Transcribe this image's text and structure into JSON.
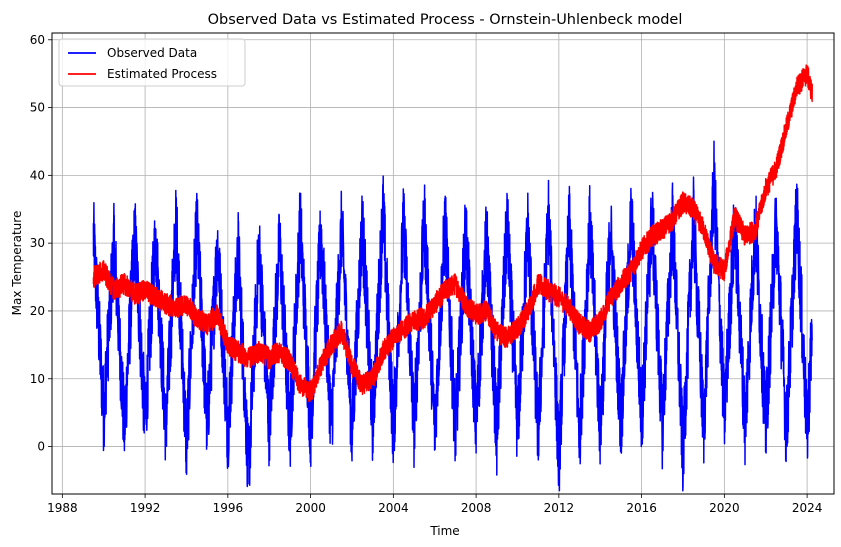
{
  "chart_data": {
    "type": "line",
    "title": "Observed Data vs Estimated Process - Ornstein-Uhlenbeck model",
    "xlabel": "Time",
    "ylabel": "Max Temperature",
    "xlim": [
      1987.5,
      2025.3
    ],
    "ylim": [
      -7,
      61
    ],
    "xticks": [
      1988,
      1992,
      1996,
      2000,
      2004,
      2008,
      2012,
      2016,
      2020,
      2024
    ],
    "xtick_labels": [
      "1988",
      "1992",
      "1996",
      "2000",
      "2004",
      "2008",
      "2012",
      "2016",
      "2020",
      "2024"
    ],
    "yticks": [
      0,
      10,
      20,
      30,
      40,
      50,
      60
    ],
    "ytick_labels": [
      "0",
      "10",
      "20",
      "30",
      "40",
      "50",
      "60"
    ],
    "grid": true,
    "legend": "upper-left",
    "series": [
      {
        "name": "Observed Data",
        "color": "#0000ff",
        "seasonal": true,
        "x": [
          1989.5,
          1990.0,
          1990.5,
          1991.0,
          1991.5,
          1992.0,
          1992.5,
          1993.0,
          1993.5,
          1994.0,
          1994.5,
          1995.0,
          1995.5,
          1996.0,
          1996.5,
          1997.0,
          1997.5,
          1998.0,
          1998.5,
          1999.0,
          1999.5,
          2000.0,
          2000.5,
          2001.0,
          2001.5,
          2002.0,
          2002.5,
          2003.0,
          2003.5,
          2004.0,
          2004.5,
          2005.0,
          2005.5,
          2006.0,
          2006.5,
          2007.0,
          2007.5,
          2008.0,
          2008.5,
          2009.0,
          2009.5,
          2010.0,
          2010.5,
          2011.0,
          2011.5,
          2012.0,
          2012.5,
          2013.0,
          2013.5,
          2014.0,
          2014.5,
          2015.0,
          2015.5,
          2016.0,
          2016.5,
          2017.0,
          2017.5,
          2018.0,
          2018.5,
          2019.0,
          2019.5,
          2020.0,
          2020.5,
          2021.0,
          2021.5,
          2022.0,
          2022.5,
          2023.0,
          2023.5,
          2024.0,
          2024.25
        ],
        "y": [
          31,
          5,
          30,
          2.5,
          31.5,
          3.5,
          31,
          2.5,
          33,
          0,
          32.5,
          3,
          30,
          2,
          29,
          -4,
          29.5,
          3,
          30,
          2,
          33,
          2.5,
          31.5,
          3,
          32.5,
          2,
          33,
          3.5,
          35,
          2,
          33,
          3,
          33.5,
          2.5,
          33,
          2,
          32,
          3,
          31,
          2,
          33,
          2.5,
          32,
          2,
          34,
          -2,
          33,
          1.5,
          33,
          2.5,
          32,
          3,
          34,
          4,
          34,
          3,
          33.5,
          -1.5,
          34,
          2.5,
          39,
          4.5,
          33,
          3,
          33,
          2.5,
          33.5,
          2,
          35,
          2,
          18
        ]
      },
      {
        "name": "Estimated Process",
        "color": "#ff0000",
        "seasonal": false,
        "x": [
          1989.5,
          1990.0,
          1990.5,
          1991.0,
          1991.5,
          1992.0,
          1992.5,
          1993.0,
          1993.5,
          1994.0,
          1994.5,
          1995.0,
          1995.5,
          1996.0,
          1996.5,
          1997.0,
          1997.5,
          1998.0,
          1998.5,
          1999.0,
          1999.5,
          2000.0,
          2000.5,
          2001.0,
          2001.5,
          2002.0,
          2002.5,
          2003.0,
          2003.5,
          2004.0,
          2004.5,
          2005.0,
          2005.5,
          2006.0,
          2006.5,
          2007.0,
          2007.5,
          2008.0,
          2008.5,
          2009.0,
          2009.5,
          2010.0,
          2010.5,
          2011.0,
          2011.5,
          2012.0,
          2012.5,
          2013.0,
          2013.5,
          2014.0,
          2014.5,
          2015.0,
          2015.5,
          2016.0,
          2016.5,
          2017.0,
          2017.5,
          2018.0,
          2018.5,
          2019.0,
          2019.5,
          2020.0,
          2020.5,
          2021.0,
          2021.5,
          2022.0,
          2022.5,
          2023.0,
          2023.5,
          2024.0,
          2024.25
        ],
        "y": [
          25,
          26,
          23,
          24,
          22.5,
          23,
          22,
          21,
          20.5,
          21,
          19,
          18,
          19.5,
          15,
          14,
          13,
          14,
          13,
          14,
          12.5,
          9,
          8,
          12,
          15,
          17,
          12,
          9,
          10,
          14,
          16,
          17.5,
          18.5,
          19,
          21,
          23,
          24,
          21,
          19.5,
          20,
          17,
          16,
          17.5,
          20,
          24,
          23,
          22,
          20.5,
          18,
          17,
          18.5,
          22,
          24,
          26,
          29,
          31,
          32,
          33.5,
          36,
          35,
          32,
          27,
          26,
          34,
          31,
          32,
          38,
          41,
          47,
          53,
          55,
          52
        ]
      }
    ]
  }
}
